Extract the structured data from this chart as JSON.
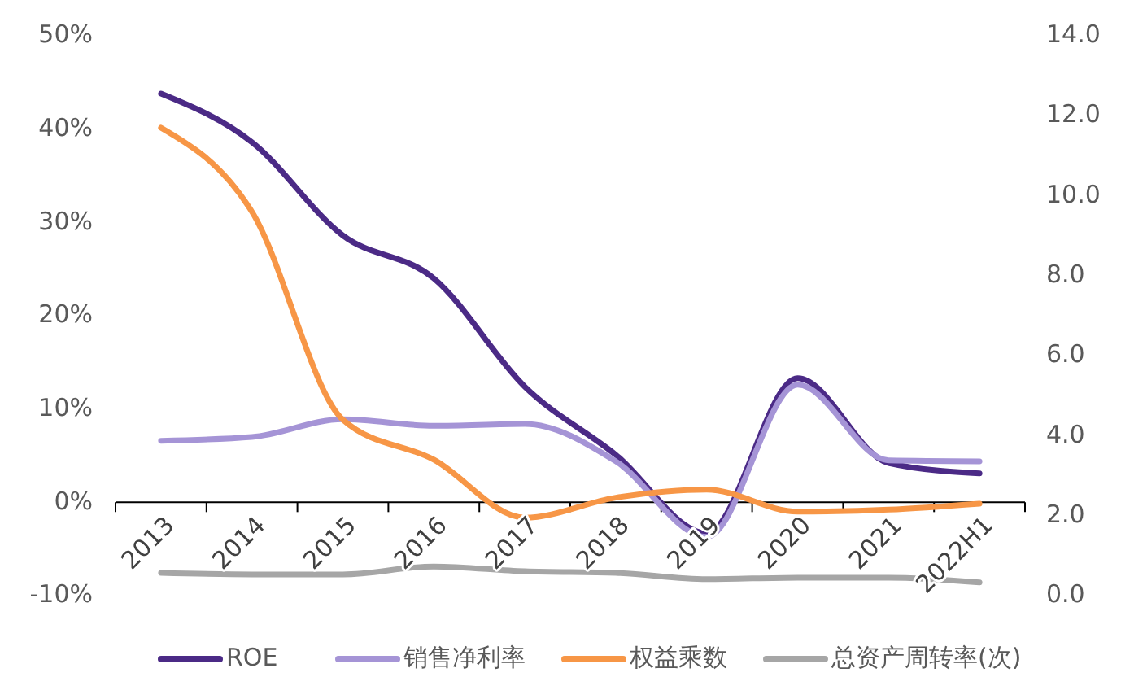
{
  "chart_data": {
    "type": "line",
    "categories": [
      "2013",
      "2014",
      "2015",
      "2016",
      "2017",
      "2018",
      "2019",
      "2020",
      "2021",
      "2022H1"
    ],
    "series": [
      {
        "name": "ROE",
        "color": "#4b2a86",
        "values": [
          43.8,
          38.6,
          28.6,
          24.0,
          12.4,
          5.1,
          -3.3,
          13.3,
          4.2,
          3.1
        ]
      },
      {
        "name": "销售净利率",
        "color": "#a594d6",
        "values": [
          6.6,
          7.0,
          8.9,
          8.2,
          8.4,
          4.4,
          -3.7,
          12.6,
          4.5,
          4.4
        ]
      },
      {
        "name": "权益乘数",
        "color": "#f79646",
        "axis": "y2",
        "values": [
          11.7,
          9.6,
          4.4,
          3.4,
          1.95,
          2.45,
          2.65,
          2.1,
          2.15,
          2.3
        ]
      },
      {
        "name": "总资产周转率(次)",
        "color": "#a6a6a6",
        "axis": "y2",
        "values": [
          0.57,
          0.53,
          0.53,
          0.73,
          0.61,
          0.57,
          0.41,
          0.45,
          0.45,
          0.33
        ]
      }
    ],
    "ylim": [
      -10,
      50
    ],
    "yticks": [
      {
        "value": -10,
        "label": "-10%"
      },
      {
        "value": 0,
        "label": "0%"
      },
      {
        "value": 10,
        "label": "10%"
      },
      {
        "value": 20,
        "label": "20%"
      },
      {
        "value": 30,
        "label": "30%"
      },
      {
        "value": 40,
        "label": "40%"
      },
      {
        "value": 50,
        "label": "50%"
      }
    ],
    "y2lim": [
      0,
      14
    ],
    "y2ticks": [
      {
        "value": 0,
        "label": "0.0"
      },
      {
        "value": 2,
        "label": "2.0"
      },
      {
        "value": 4,
        "label": "4.0"
      },
      {
        "value": 6,
        "label": "6.0"
      },
      {
        "value": 8,
        "label": "8.0"
      },
      {
        "value": 10,
        "label": "10.0"
      },
      {
        "value": 12,
        "label": "12.0"
      },
      {
        "value": 14,
        "label": "14.0"
      }
    ],
    "grid": false,
    "legend": "bottom",
    "marker": "none",
    "line_style": "solid"
  }
}
